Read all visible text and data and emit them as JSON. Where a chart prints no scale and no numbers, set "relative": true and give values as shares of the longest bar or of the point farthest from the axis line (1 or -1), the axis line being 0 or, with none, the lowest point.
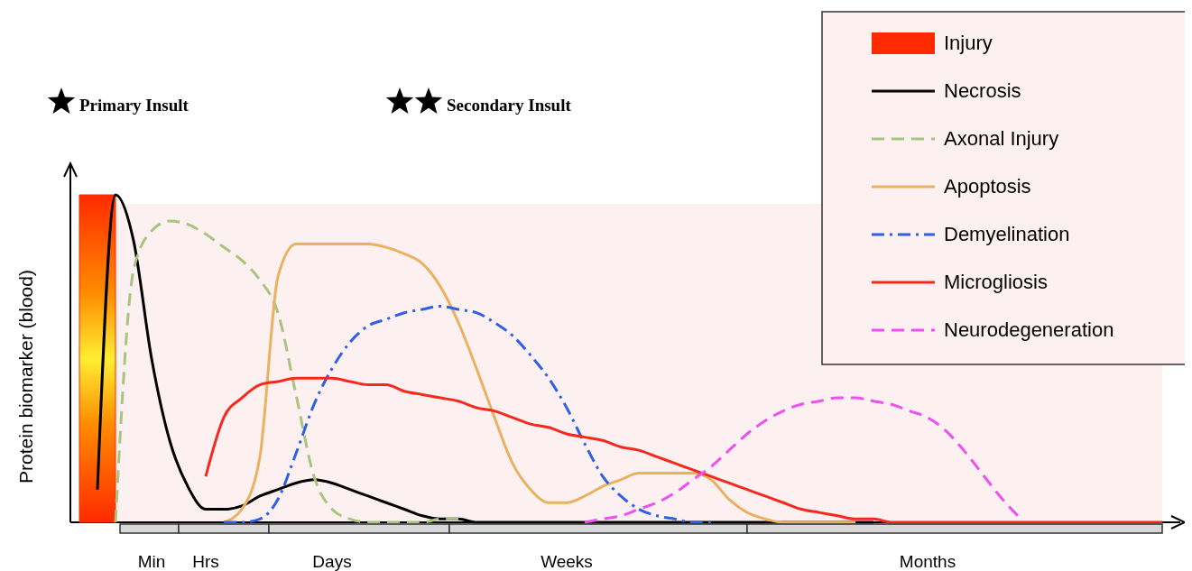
{
  "chart_data": {
    "type": "line",
    "relative": true,
    "ylabel": "Protein biomarker (blood)",
    "legend": "top right",
    "annotations": [
      "Primary Insult",
      "Secondary Insult"
    ],
    "categories": [
      null,
      null,
      null,
      null,
      "Min",
      null,
      null,
      "Hrs",
      null,
      null,
      null,
      null,
      null,
      null,
      "Days",
      null,
      null,
      null,
      null,
      null,
      null,
      null,
      null,
      null,
      null,
      null,
      null,
      "Weeks",
      null,
      null,
      null,
      null,
      null,
      null,
      null,
      null,
      null,
      null,
      null,
      null,
      null,
      null,
      null,
      null,
      null,
      null,
      null,
      "Months",
      null,
      null,
      null,
      null,
      null,
      null,
      null,
      null,
      null,
      null,
      null,
      null,
      null
    ],
    "series": [
      {
        "name": "Injury",
        "type": "area",
        "color": "#ff2a00",
        "values": [
          1,
          1,
          1,
          null,
          null,
          null,
          null,
          null,
          null,
          null,
          null,
          null,
          null,
          null,
          null,
          null,
          null,
          null,
          null,
          null,
          null,
          null,
          null,
          null,
          null,
          null,
          null,
          null,
          null,
          null,
          null,
          null,
          null,
          null,
          null,
          null,
          null,
          null,
          null,
          null,
          null,
          null,
          null,
          null,
          null,
          null,
          null,
          null,
          null,
          null,
          null,
          null,
          null,
          null,
          null,
          null,
          null,
          null,
          null,
          null,
          null
        ]
      },
      {
        "name": "Necrosis",
        "color": "#000000",
        "line_style": "solid",
        "values": [
          null,
          0.1,
          1,
          0.86,
          0.5,
          0.25,
          0.11,
          0.04,
          0.04,
          0.05,
          0.08,
          0.1,
          0.12,
          0.13,
          0.12,
          0.1,
          0.08,
          0.06,
          0.04,
          0.02,
          0.01,
          0.01,
          0,
          0,
          0,
          0,
          0,
          0,
          0,
          0,
          0,
          0,
          0,
          0,
          0,
          0,
          0,
          0,
          0,
          0,
          0,
          0,
          0,
          0,
          0,
          null,
          null,
          null,
          null,
          null,
          null,
          null,
          null,
          null,
          null,
          null,
          null,
          null,
          null,
          null,
          null
        ]
      },
      {
        "name": "Axonal Injury",
        "color": "#a8c47f",
        "line_style": "dashed",
        "values": [
          null,
          null,
          0,
          0.77,
          0.89,
          0.92,
          0.91,
          0.88,
          0.84,
          0.8,
          0.74,
          0.64,
          0.39,
          0.14,
          0.04,
          0.01,
          0,
          0,
          0,
          0,
          0.01,
          0.01,
          null,
          null,
          null,
          null,
          null,
          null,
          null,
          null,
          null,
          null,
          null,
          null,
          null,
          null,
          null,
          null,
          null,
          null,
          null,
          null,
          null,
          null,
          null,
          null,
          null,
          null,
          null,
          null,
          null,
          null,
          null,
          null,
          null,
          null,
          null,
          null,
          null,
          null,
          null
        ]
      },
      {
        "name": "Apoptosis",
        "color": "#eab160",
        "line_style": "solid",
        "values": [
          null,
          null,
          null,
          null,
          null,
          null,
          null,
          null,
          0,
          0.04,
          0.2,
          0.75,
          0.85,
          0.85,
          0.85,
          0.85,
          0.85,
          0.84,
          0.82,
          0.79,
          0.72,
          0.61,
          0.47,
          0.32,
          0.18,
          0.1,
          0.06,
          0.06,
          0.08,
          0.11,
          0.13,
          0.15,
          0.15,
          0.15,
          0.15,
          0.13,
          0.07,
          0.03,
          0.01,
          0,
          0,
          0,
          0,
          0,
          null,
          null,
          null,
          null,
          null,
          null,
          null,
          null,
          null,
          null,
          null,
          null,
          null,
          null,
          null,
          null,
          null
        ]
      },
      {
        "name": "Demyelination",
        "color": "#2f5fe8",
        "line_style": "dashdot",
        "values": [
          null,
          null,
          null,
          null,
          null,
          null,
          null,
          null,
          0,
          0,
          0.01,
          0.07,
          0.21,
          0.36,
          0.47,
          0.55,
          0.6,
          0.62,
          0.64,
          0.65,
          0.66,
          0.65,
          0.64,
          0.61,
          0.57,
          0.51,
          0.44,
          0.35,
          0.24,
          0.14,
          0.08,
          0.04,
          0.02,
          0.01,
          0,
          0,
          null,
          null,
          null,
          null,
          null,
          null,
          null,
          null,
          null,
          null,
          null,
          null,
          null,
          null,
          null,
          null,
          null,
          null,
          null,
          null,
          null,
          null,
          null,
          null,
          null
        ]
      },
      {
        "name": "Microgliosis",
        "color": "#f5281e",
        "line_style": "solid",
        "values": [
          null,
          null,
          null,
          null,
          null,
          null,
          null,
          0.14,
          0.32,
          0.38,
          0.42,
          0.43,
          0.44,
          0.44,
          0.44,
          0.43,
          0.42,
          0.42,
          0.4,
          0.39,
          0.38,
          0.37,
          0.35,
          0.34,
          0.32,
          0.3,
          0.29,
          0.27,
          0.26,
          0.25,
          0.23,
          0.22,
          0.2,
          0.18,
          0.16,
          0.14,
          0.12,
          0.1,
          0.08,
          0.06,
          0.04,
          0.03,
          0.02,
          0.01,
          0.01,
          0,
          0,
          0,
          0,
          0,
          0,
          0,
          0,
          0,
          0,
          0,
          0,
          0,
          0,
          0,
          0
        ]
      },
      {
        "name": "Neurodegeneration",
        "color": "#ee4ff0",
        "line_style": "dashed",
        "values": [
          null,
          null,
          null,
          null,
          null,
          null,
          null,
          null,
          null,
          null,
          null,
          null,
          null,
          null,
          null,
          null,
          null,
          null,
          null,
          null,
          null,
          null,
          null,
          null,
          null,
          null,
          null,
          null,
          0,
          0.01,
          0.02,
          0.04,
          0.06,
          0.09,
          0.13,
          0.17,
          0.22,
          0.27,
          0.31,
          0.34,
          0.36,
          0.37,
          0.38,
          0.38,
          0.37,
          0.36,
          0.34,
          0.32,
          0.28,
          0.22,
          0.15,
          0.08,
          0.02,
          null,
          null,
          null,
          null,
          null,
          null,
          null,
          null
        ]
      }
    ]
  }
}
